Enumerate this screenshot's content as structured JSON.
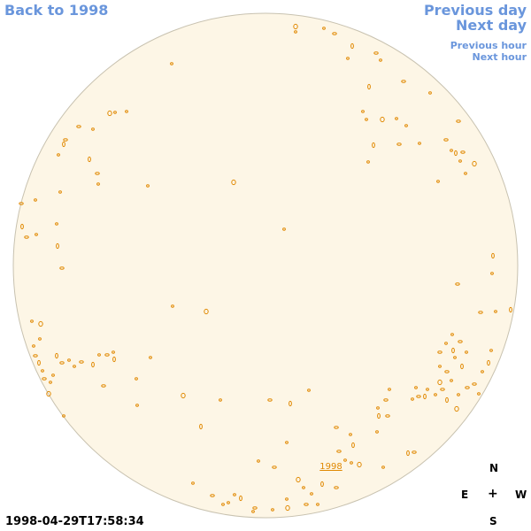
{
  "nav": {
    "back_label": "Back to 1998",
    "previous_day": "Previous day",
    "next_day": "Next day",
    "previous_hour": "Previous hour",
    "next_hour": "Next hour"
  },
  "disk": {
    "fill_color": "#fdf6e6",
    "outline_color": "#c8c2b0",
    "feature_color": "#e08800",
    "year_label": "1998"
  },
  "compass": {
    "n": "N",
    "e": "E",
    "center": "+",
    "w": "W",
    "s": "S"
  },
  "timestamp": "1998-04-29T17:58:34"
}
